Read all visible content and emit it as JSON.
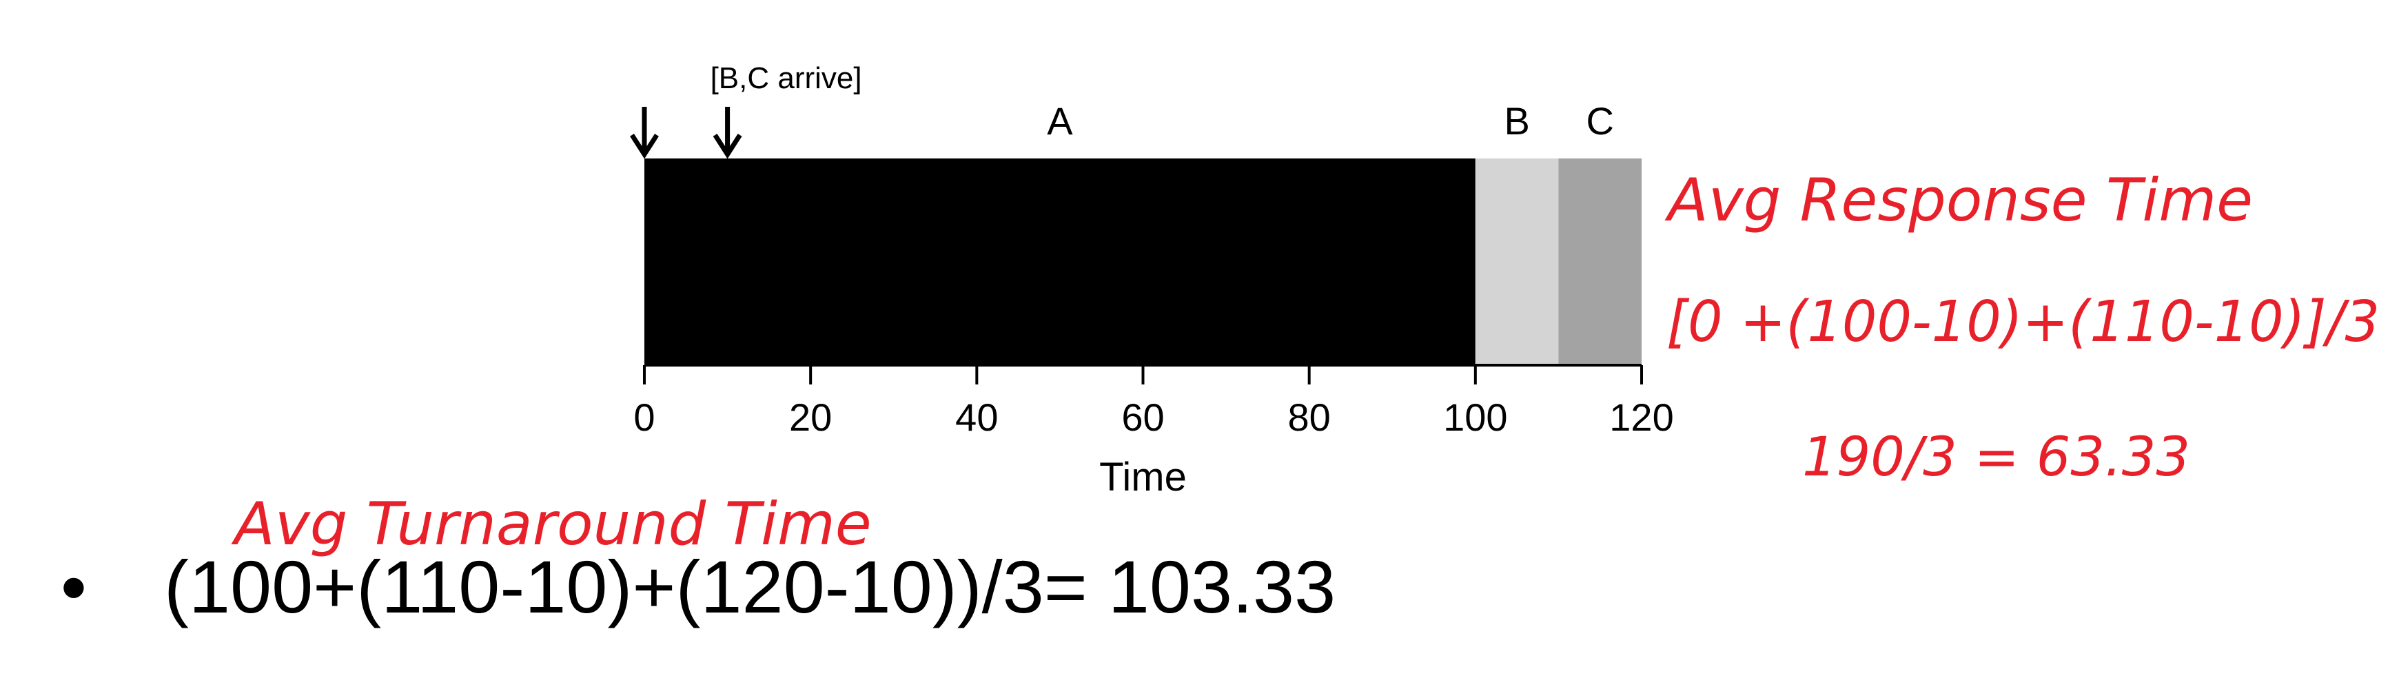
{
  "chart_data": {
    "type": "gantt",
    "xlabel": "Time",
    "xlim": [
      0,
      120
    ],
    "ticks": [
      0,
      20,
      40,
      60,
      80,
      100,
      120
    ],
    "jobs": [
      {
        "name": "A",
        "start": 0,
        "end": 100,
        "color": "#000000"
      },
      {
        "name": "B",
        "start": 100,
        "end": 110,
        "color": "#d4d4d4"
      },
      {
        "name": "C",
        "start": 110,
        "end": 120,
        "color": "#a3a3a3"
      }
    ],
    "arrivals": [
      {
        "time": 0,
        "label": ""
      },
      {
        "time": 10,
        "label": "[B,C arrive]"
      }
    ]
  },
  "annotations": {
    "response_title": "Avg Response Time",
    "response_formula": "[0 +(100-10)+(110-10)]/3",
    "response_result": "190/3 = 63.33",
    "turnaround_title": "Avg Turnaround Time"
  },
  "bullet": {
    "marker": "•",
    "text": "(100+(110-10)+(120-10))/3= 103.33"
  }
}
